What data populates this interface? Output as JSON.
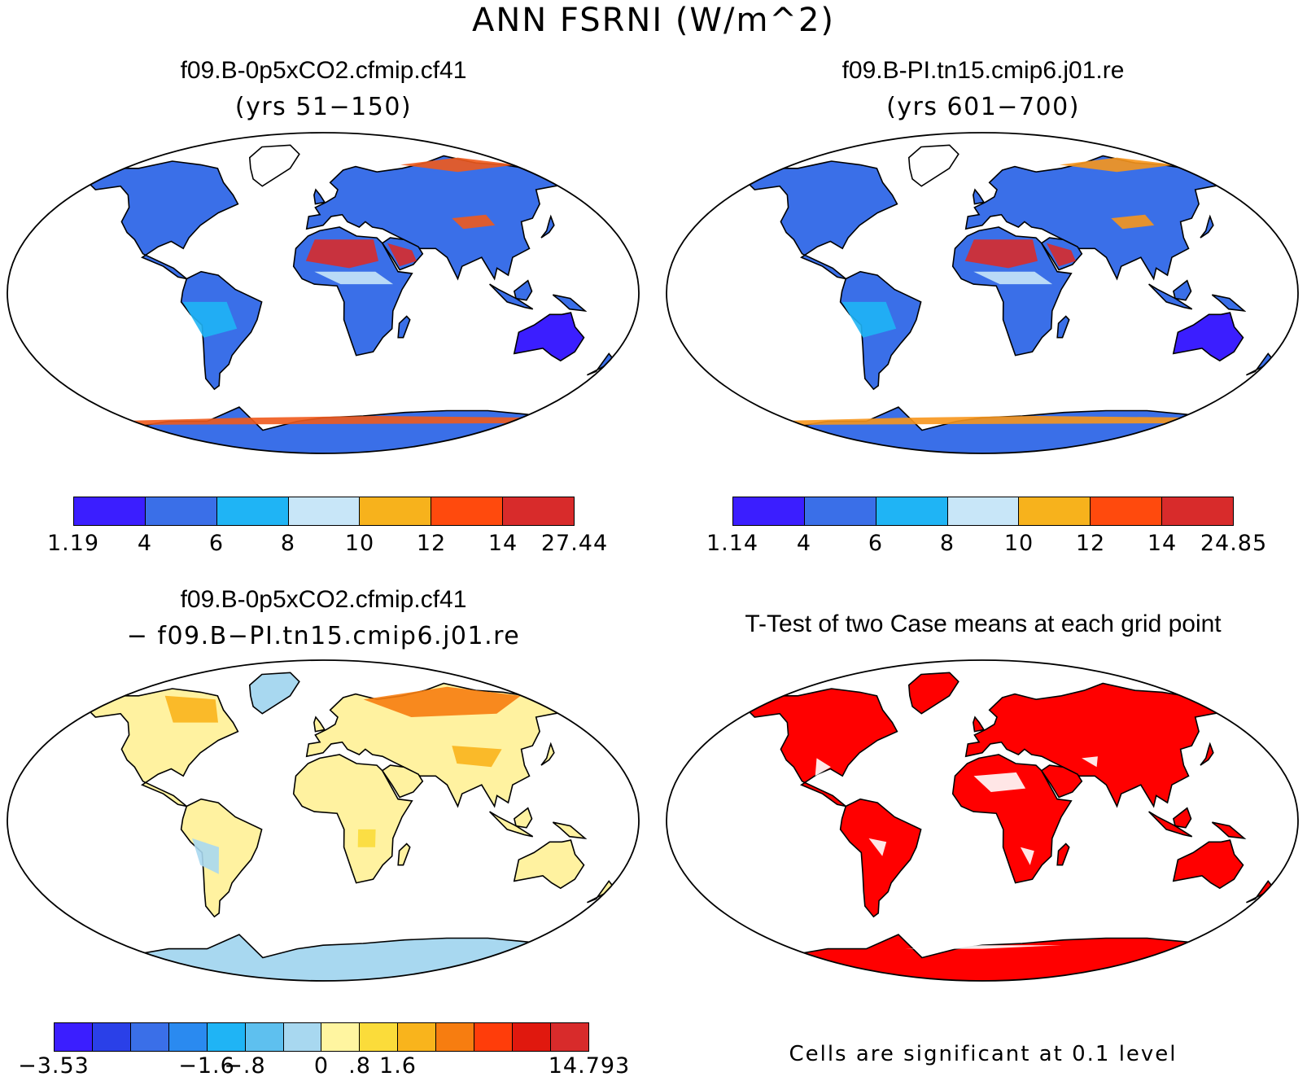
{
  "title": "ANN FSRNI (W/m^2)",
  "panels": [
    {
      "id": "case1",
      "title": "f09.B-0p5xCO2.cfmip.cf41",
      "subtitle": "(yrs 51−150)",
      "colorbar": {
        "colors": [
          "#3b1eff",
          "#3a6fe8",
          "#1fb4f5",
          "#c8e6f8",
          "#f7b21c",
          "#ff4a0d",
          "#d82b2b"
        ],
        "tick_labels": [
          "1.19",
          "4",
          "6",
          "8",
          "10",
          "12",
          "14",
          "27.44"
        ]
      }
    },
    {
      "id": "case2",
      "title": "f09.B-PI.tn15.cmip6.j01.re",
      "subtitle": "(yrs 601−700)",
      "colorbar": {
        "colors": [
          "#3b1eff",
          "#3a6fe8",
          "#1fb4f5",
          "#c8e6f8",
          "#f7b21c",
          "#ff4a0d",
          "#d82b2b"
        ],
        "tick_labels": [
          "1.14",
          "4",
          "6",
          "8",
          "10",
          "12",
          "14",
          "24.85"
        ]
      }
    },
    {
      "id": "diff",
      "title": "f09.B-0p5xCO2.cfmip.cf41",
      "subtitle": "− f09.B−PI.tn15.cmip6.j01.re",
      "colorbar": {
        "colors": [
          "#3b1eff",
          "#2a40e8",
          "#3a6fe8",
          "#2a8af0",
          "#1fb4f5",
          "#5ec0ef",
          "#a8d8f0",
          "#fff5a0",
          "#fbdc3a",
          "#f9b41c",
          "#f77d10",
          "#ff3d0a",
          "#e0180e",
          "#d82b2b"
        ],
        "tick_labels": [
          "−3.53",
          "−1.6",
          "−.8",
          "0",
          ".8",
          "1.6",
          "14.793"
        ]
      }
    },
    {
      "id": "ttest",
      "title": "T-Test of two Case means at each grid point",
      "footnote": "Cells are significant at 0.1 level"
    }
  ]
}
